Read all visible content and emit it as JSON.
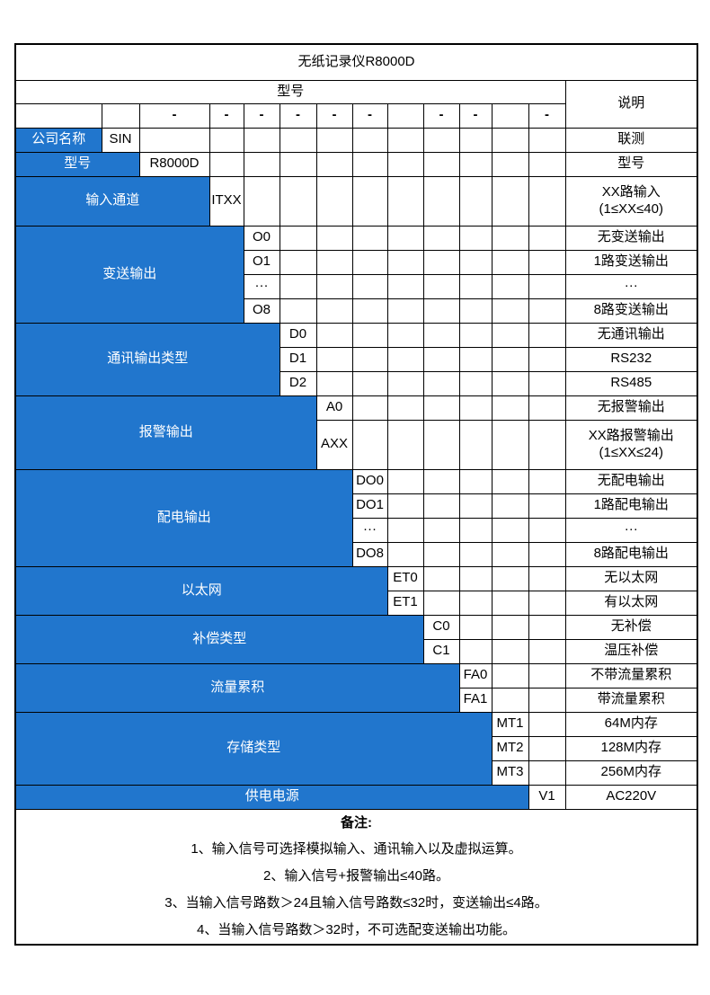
{
  "colors": {
    "accent_blue": "#2176CD",
    "border": "#000000",
    "text_on_blue": "#FFFFFF",
    "text": "#000000"
  },
  "title": "无纸记录仪R8000D",
  "header": {
    "model_label": "型号",
    "description_label": "说明"
  },
  "code_row": {
    "cells": [
      "",
      "",
      "-",
      "-",
      "-",
      "-",
      "-",
      "-",
      "",
      "-",
      "-",
      "",
      "-"
    ]
  },
  "sections": [
    {
      "label": "公司名称",
      "label_span": 1,
      "options": [
        {
          "code": "SIN",
          "desc": "联测"
        }
      ]
    },
    {
      "label": "型号",
      "label_span": 2,
      "options": [
        {
          "code": "R8000D",
          "desc": "型号"
        }
      ]
    },
    {
      "label": "输入通道",
      "label_span": 3,
      "options": [
        {
          "code": "ITXX",
          "desc": "XX路输入\n(1≤XX≤40)"
        }
      ]
    },
    {
      "label": "变送输出",
      "label_span": 4,
      "options": [
        {
          "code": "O0",
          "desc": "无变送输出"
        },
        {
          "code": "O1",
          "desc": "1路变送输出"
        },
        {
          "code": "···",
          "desc": "···"
        },
        {
          "code": "O8",
          "desc": "8路变送输出"
        }
      ]
    },
    {
      "label": "通讯输出类型",
      "label_span": 5,
      "options": [
        {
          "code": "D0",
          "desc": "无通讯输出"
        },
        {
          "code": "D1",
          "desc": "RS232"
        },
        {
          "code": "D2",
          "desc": "RS485"
        }
      ]
    },
    {
      "label": "报警输出",
      "label_span": 6,
      "options": [
        {
          "code": "A0",
          "desc": "无报警输出"
        },
        {
          "code": "AXX",
          "desc": "XX路报警输出\n(1≤XX≤24)"
        }
      ]
    },
    {
      "label": "配电输出",
      "label_span": 7,
      "options": [
        {
          "code": "DO0",
          "desc": "无配电输出"
        },
        {
          "code": "DO1",
          "desc": "1路配电输出"
        },
        {
          "code": "···",
          "desc": "···"
        },
        {
          "code": "DO8",
          "desc": "8路配电输出"
        }
      ]
    },
    {
      "label": "以太网",
      "label_span": 8,
      "options": [
        {
          "code": "ET0",
          "desc": "无以太网"
        },
        {
          "code": "ET1",
          "desc": "有以太网"
        }
      ]
    },
    {
      "label": "补偿类型",
      "label_span": 9,
      "options": [
        {
          "code": "C0",
          "desc": "无补偿"
        },
        {
          "code": "C1",
          "desc": "温压补偿"
        }
      ]
    },
    {
      "label": "流量累积",
      "label_span": 10,
      "options": [
        {
          "code": "FA0",
          "desc": "不带流量累积"
        },
        {
          "code": "FA1",
          "desc": "带流量累积"
        }
      ]
    },
    {
      "label": "存储类型",
      "label_span": 11,
      "options": [
        {
          "code": "MT1",
          "desc": "64M内存"
        },
        {
          "code": "MT2",
          "desc": "128M内存"
        },
        {
          "code": "MT3",
          "desc": "256M内存"
        }
      ]
    },
    {
      "label": "供电电源",
      "label_span": 12,
      "options": [
        {
          "code": "V1",
          "desc": "AC220V"
        }
      ]
    }
  ],
  "notes": {
    "heading": "备注:",
    "items": [
      "1、输入信号可选择模拟输入、通讯输入以及虚拟运算。",
      "2、输入信号+报警输出≤40路。",
      "3、当输入信号路数＞24且输入信号路数≤32时，变送输出≤4路。",
      "4、当输入信号路数＞32时，不可选配变送输出功能。"
    ]
  }
}
